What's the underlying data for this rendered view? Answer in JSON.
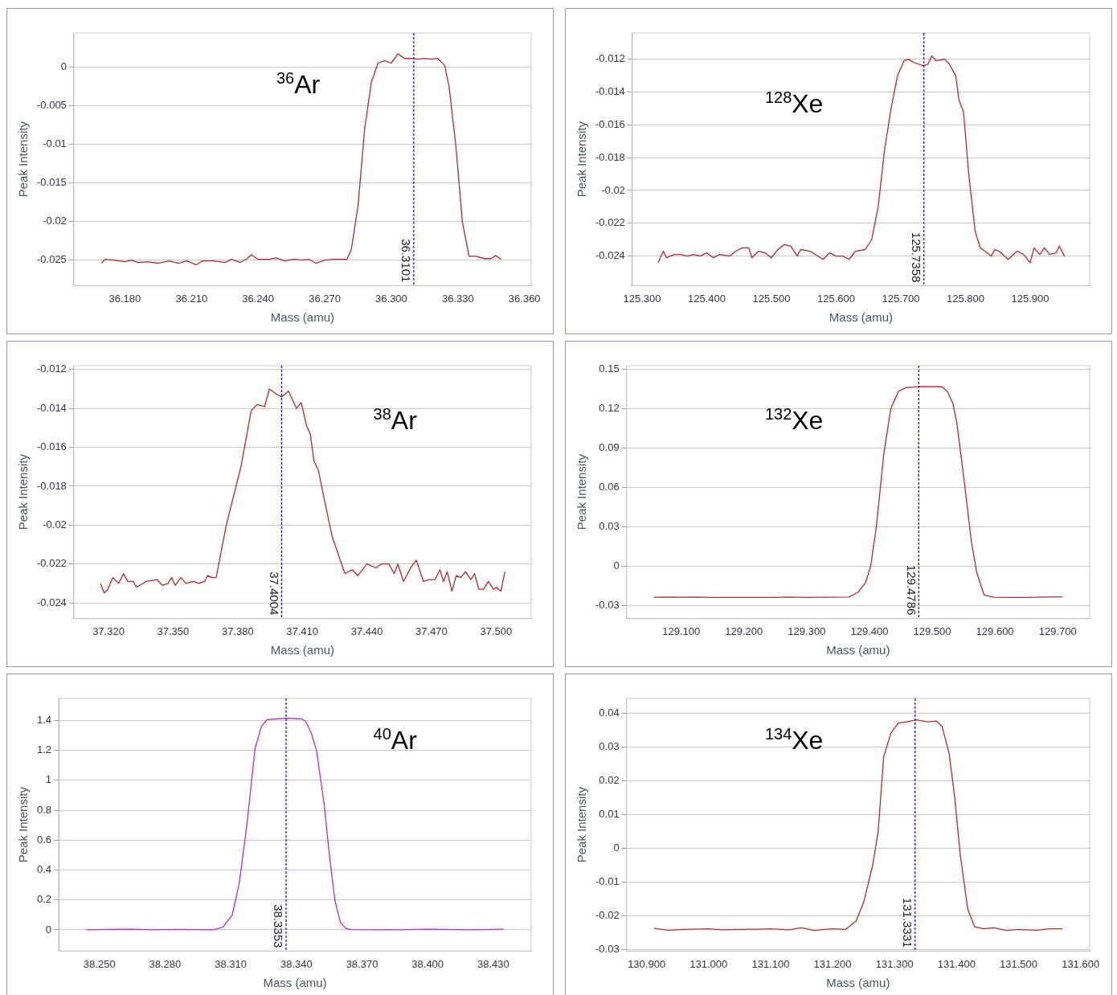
{
  "chart_data": [
    {
      "type": "line",
      "xlabel": "Mass (amu)",
      "ylabel": "Peak Intensity",
      "annotations": [
        "$^{36}$Ar"
      ],
      "grid": "y",
      "color": "#b22a2a",
      "x": [
        36.1695,
        36.171,
        36.175,
        36.18,
        36.183,
        36.186,
        36.19,
        36.195,
        36.2,
        36.204,
        36.208,
        36.212,
        36.215,
        36.22,
        36.225,
        36.228,
        36.232,
        36.235,
        36.237,
        36.24,
        36.245,
        36.248,
        36.252,
        36.256,
        36.26,
        36.263,
        36.266,
        36.27,
        36.274,
        36.28,
        36.282,
        36.285,
        36.288,
        36.291,
        36.294,
        36.297,
        36.3,
        36.303,
        36.306,
        36.309,
        36.312,
        36.315,
        36.318,
        36.321,
        36.324,
        36.326,
        36.329,
        36.332,
        36.335,
        36.338,
        36.342,
        36.345,
        36.347,
        36.3495
      ],
      "values": [
        -0.0254,
        -0.0249,
        -0.025,
        -0.0252,
        -0.025,
        -0.0253,
        -0.0252,
        -0.0254,
        -0.0251,
        -0.0254,
        -0.0251,
        -0.0256,
        -0.0251,
        -0.0251,
        -0.0253,
        -0.0249,
        -0.0253,
        -0.0248,
        -0.0243,
        -0.0249,
        -0.0249,
        -0.0247,
        -0.0251,
        -0.0249,
        -0.025,
        -0.0249,
        -0.0254,
        -0.025,
        -0.0249,
        -0.0249,
        -0.0236,
        -0.018,
        -0.008,
        -0.002,
        0.0005,
        0.0008,
        0.0005,
        0.0017,
        0.0011,
        0.0011,
        0.001,
        0.0011,
        0.001,
        0.0011,
        0.0002,
        -0.0025,
        -0.01,
        -0.02,
        -0.0245,
        -0.0245,
        -0.0248,
        -0.0248,
        -0.0244,
        -0.0249
      ],
      "xlim": [
        36.157,
        36.363
      ],
      "xticks": [
        {
          "value": 36.18,
          "label": "36.180"
        },
        {
          "value": 36.21,
          "label": "36.210"
        },
        {
          "value": 36.24,
          "label": "36.240"
        },
        {
          "value": 36.27,
          "label": "36.270"
        },
        {
          "value": 36.3,
          "label": "36.300"
        },
        {
          "value": 36.33,
          "label": "36.330"
        },
        {
          "value": 36.36,
          "label": "36.360"
        }
      ],
      "ylim": [
        -0.0283,
        0.0044
      ],
      "yticks": [
        0,
        -0.005,
        -0.01,
        -0.015,
        -0.02,
        -0.025
      ],
      "ref_lines": [
        {
          "axis": "x",
          "value": 36.3101,
          "label": "36.3101",
          "color": "#0000ee",
          "line_style": "dashed"
        }
      ]
    },
    {
      "type": "line",
      "xlabel": "Mass (amu)",
      "ylabel": "Peak Intensity",
      "annotations": [
        "$^{128}$Xe"
      ],
      "grid": "y",
      "color": "#b22a2a",
      "x": [
        125.325,
        125.333,
        125.338,
        125.35,
        125.36,
        125.37,
        125.38,
        125.39,
        125.4,
        125.41,
        125.42,
        125.435,
        125.445,
        125.455,
        125.465,
        125.47,
        125.48,
        125.49,
        125.5,
        125.51,
        125.52,
        125.53,
        125.54,
        125.545,
        125.56,
        125.58,
        125.59,
        125.6,
        125.61,
        125.62,
        125.63,
        125.645,
        125.655,
        125.665,
        125.675,
        125.685,
        125.695,
        125.705,
        125.712,
        125.72,
        125.735,
        125.742,
        125.748,
        125.755,
        125.768,
        125.775,
        125.785,
        125.79,
        125.797,
        125.805,
        125.815,
        125.823,
        125.83,
        125.84,
        125.845,
        125.852,
        125.866,
        125.88,
        125.89,
        125.9,
        125.906,
        125.915,
        125.922,
        125.93,
        125.94,
        125.945,
        125.953
      ],
      "values": [
        -0.0244,
        -0.0237,
        -0.0241,
        -0.0239,
        -0.0239,
        -0.024,
        -0.0239,
        -0.024,
        -0.0238,
        -0.0241,
        -0.0239,
        -0.024,
        -0.0237,
        -0.0235,
        -0.0235,
        -0.0241,
        -0.0237,
        -0.0238,
        -0.0241,
        -0.0236,
        -0.0233,
        -0.0234,
        -0.024,
        -0.0236,
        -0.0237,
        -0.0242,
        -0.0238,
        -0.024,
        -0.024,
        -0.0242,
        -0.0237,
        -0.0236,
        -0.023,
        -0.021,
        -0.0175,
        -0.015,
        -0.013,
        -0.0121,
        -0.012,
        -0.0122,
        -0.0124,
        -0.0123,
        -0.0118,
        -0.0121,
        -0.012,
        -0.0123,
        -0.013,
        -0.0145,
        -0.0152,
        -0.019,
        -0.0225,
        -0.0235,
        -0.0237,
        -0.024,
        -0.0236,
        -0.0237,
        -0.0242,
        -0.0237,
        -0.0239,
        -0.0244,
        -0.0235,
        -0.0239,
        -0.0235,
        -0.0239,
        -0.0238,
        -0.0234,
        -0.024
      ],
      "xlim": [
        125.285,
        125.992
      ],
      "xticks": [
        {
          "value": 125.3,
          "label": "125.300"
        },
        {
          "value": 125.4,
          "label": "125.400"
        },
        {
          "value": 125.5,
          "label": "125.500"
        },
        {
          "value": 125.6,
          "label": "125.600"
        },
        {
          "value": 125.7,
          "label": "125.700"
        },
        {
          "value": 125.8,
          "label": "125.800"
        },
        {
          "value": 125.9,
          "label": "125.900"
        }
      ],
      "ylim": [
        -0.0258,
        -0.0104
      ],
      "yticks": [
        -0.012,
        -0.014,
        -0.016,
        -0.018,
        -0.02,
        -0.022,
        -0.024
      ],
      "ref_lines": [
        {
          "axis": "x",
          "value": 125.7358,
          "label": "125.7358",
          "color": "#0000ee",
          "line_style": "dashed"
        }
      ]
    },
    {
      "type": "line",
      "xlabel": "Mass (amu)",
      "ylabel": "Peak Intensity",
      "annotations": [
        "$^{38}$Ar"
      ],
      "grid": "y",
      "color": "#b22a2a",
      "x": [
        37.3163,
        37.318,
        37.3197,
        37.322,
        37.3247,
        37.327,
        37.329,
        37.3315,
        37.333,
        37.3375,
        37.3425,
        37.345,
        37.3476,
        37.3493,
        37.351,
        37.3536,
        37.356,
        37.3595,
        37.362,
        37.3646,
        37.366,
        37.368,
        37.37,
        37.3747,
        37.3815,
        37.3863,
        37.389,
        37.3925,
        37.3947,
        37.3985,
        37.4005,
        37.4036,
        37.4073,
        37.4095,
        37.412,
        37.4137,
        37.4154,
        37.4175,
        37.4197,
        37.4239,
        37.4264,
        37.4298,
        37.4332,
        37.4358,
        37.44,
        37.4442,
        37.4468,
        37.4502,
        37.4527,
        37.4544,
        37.457,
        37.4603,
        37.4629,
        37.4663,
        37.4688,
        37.4717,
        37.4739,
        37.4756,
        37.4773,
        37.4795,
        37.4815,
        37.4836,
        37.4858,
        37.4883,
        37.49,
        37.492,
        37.4942,
        37.4964,
        37.4988,
        37.5002,
        37.5022,
        37.5041
      ],
      "values": [
        -0.023,
        -0.0235,
        -0.0233,
        -0.0227,
        -0.023,
        -0.0225,
        -0.0229,
        -0.0229,
        -0.0232,
        -0.0229,
        -0.0228,
        -0.0231,
        -0.023,
        -0.0227,
        -0.0231,
        -0.0227,
        -0.023,
        -0.0229,
        -0.023,
        -0.0229,
        -0.0226,
        -0.0227,
        -0.0227,
        -0.02,
        -0.017,
        -0.0141,
        -0.0138,
        -0.0139,
        -0.013,
        -0.0133,
        -0.0134,
        -0.0131,
        -0.014,
        -0.0137,
        -0.0149,
        -0.0153,
        -0.0167,
        -0.0172,
        -0.0184,
        -0.0206,
        -0.0214,
        -0.0225,
        -0.0223,
        -0.0226,
        -0.022,
        -0.0222,
        -0.022,
        -0.022,
        -0.0225,
        -0.022,
        -0.0229,
        -0.0222,
        -0.0218,
        -0.0229,
        -0.0228,
        -0.0228,
        -0.0223,
        -0.0229,
        -0.0224,
        -0.0234,
        -0.0226,
        -0.0227,
        -0.0224,
        -0.0228,
        -0.0225,
        -0.0233,
        -0.0233,
        -0.0229,
        -0.0233,
        -0.0232,
        -0.0234,
        -0.0224
      ],
      "xlim": [
        37.3039,
        37.5163
      ],
      "xticks": [
        {
          "value": 37.32,
          "label": "37.320"
        },
        {
          "value": 37.35,
          "label": "37.350"
        },
        {
          "value": 37.38,
          "label": "37.380"
        },
        {
          "value": 37.41,
          "label": "37.410"
        },
        {
          "value": 37.44,
          "label": "37.440"
        },
        {
          "value": 37.47,
          "label": "37.470"
        },
        {
          "value": 37.5,
          "label": "37.500"
        }
      ],
      "ylim": [
        -0.0248,
        -0.0118
      ],
      "yticks": [
        -0.012,
        -0.014,
        -0.016,
        -0.018,
        -0.02,
        -0.022,
        -0.024
      ],
      "ref_lines": [
        {
          "axis": "x",
          "value": 37.4004,
          "label": "37.4004",
          "color": "#0000ee",
          "line_style": "dashed"
        }
      ]
    },
    {
      "type": "line",
      "xlabel": "Mass (amu)",
      "ylabel": "Peak Intensity",
      "annotations": [
        "$^{132}$Xe"
      ],
      "grid": "y",
      "color": "#b22a2a",
      "x": [
        129.0564,
        129.08,
        129.1,
        129.12,
        129.15,
        129.2,
        129.25,
        129.27,
        129.3,
        129.33,
        129.367,
        129.382,
        129.394,
        129.402,
        129.411,
        129.423,
        129.434,
        129.446,
        129.4576,
        129.481,
        129.5157,
        129.5244,
        129.533,
        129.539,
        129.55,
        129.5622,
        129.571,
        129.5826,
        129.597,
        129.62,
        129.65,
        129.68,
        129.7076
      ],
      "values": [
        -0.0239,
        -0.0237,
        -0.0239,
        -0.0237,
        -0.024,
        -0.024,
        -0.024,
        -0.0237,
        -0.024,
        -0.0239,
        -0.0237,
        -0.02,
        -0.0125,
        0,
        0.03,
        0.086,
        0.12,
        0.133,
        0.136,
        0.1369,
        0.1367,
        0.133,
        0.124,
        0.11,
        0.069,
        0.0194,
        -0.005,
        -0.022,
        -0.0239,
        -0.024,
        -0.024,
        -0.0237,
        -0.0236
      ],
      "xlim": [
        129.0128,
        129.751
      ],
      "xticks": [
        {
          "value": 129.1,
          "label": "129.100"
        },
        {
          "value": 129.2,
          "label": "129.200"
        },
        {
          "value": 129.3,
          "label": "129.300"
        },
        {
          "value": 129.4,
          "label": "129.400"
        },
        {
          "value": 129.5,
          "label": "129.500"
        },
        {
          "value": 129.6,
          "label": "129.600"
        },
        {
          "value": 129.7,
          "label": "129.700"
        }
      ],
      "ylim": [
        -0.04,
        0.1528
      ],
      "yticks": [
        0.15,
        0.12,
        0.09,
        0.06,
        0.03,
        0,
        -0.03
      ],
      "ref_lines": [
        {
          "axis": "x",
          "value": 129.4786,
          "label": "129.4786",
          "color": "#0000ee",
          "line_style": "dashed"
        }
      ]
    },
    {
      "type": "line",
      "xlabel": "Mass (amu)",
      "ylabel": "Peak Intensity",
      "annotations": [
        "$^{40}$Ar"
      ],
      "grid": "y",
      "color": "#b030c0",
      "x": [
        38.2441,
        38.255,
        38.265,
        38.275,
        38.285,
        38.295,
        38.3023,
        38.3065,
        38.3107,
        38.314,
        38.3174,
        38.3211,
        38.324,
        38.3266,
        38.3308,
        38.3358,
        38.3425,
        38.3442,
        38.3467,
        38.3492,
        38.3526,
        38.3551,
        38.3576,
        38.3601,
        38.3626,
        38.365,
        38.38,
        38.4,
        38.42,
        38.4347
      ],
      "values": [
        0,
        0.003,
        0.004,
        0,
        0.003,
        0.002,
        0,
        0.02,
        0.1,
        0.32,
        0.706,
        1.21,
        1.36,
        1.405,
        1.41,
        1.415,
        1.41,
        1.395,
        1.32,
        1.2,
        0.85,
        0.5,
        0.2,
        0.05,
        0.01,
        0.002,
        0,
        0.004,
        0,
        0.004
      ],
      "xlim": [
        38.2314,
        38.4473
      ],
      "xticks": [
        {
          "value": 38.25,
          "label": "38.250"
        },
        {
          "value": 38.28,
          "label": "38.280"
        },
        {
          "value": 38.31,
          "label": "38.310"
        },
        {
          "value": 38.34,
          "label": "38.340"
        },
        {
          "value": 38.37,
          "label": "38.370"
        },
        {
          "value": 38.4,
          "label": "38.400"
        },
        {
          "value": 38.43,
          "label": "38.430"
        }
      ],
      "ylim": [
        -0.142,
        1.547
      ],
      "yticks": [
        1.4,
        1.2,
        1,
        0.8,
        0.6,
        0.4,
        0.2,
        0
      ],
      "ref_lines": [
        {
          "axis": "x",
          "value": 38.3353,
          "label": "38.3353",
          "color": "#0000ee",
          "line_style": "dashed"
        }
      ]
    },
    {
      "type": "line",
      "xlabel": "Mass (amu)",
      "ylabel": "Peak Intensity",
      "annotations": [
        "$^{134}$Xe"
      ],
      "grid": "y",
      "color": "#b22a2a",
      "x": [
        130.912,
        130.935,
        130.96,
        131.0,
        131.02,
        131.05,
        131.08,
        131.1,
        131.13,
        131.15,
        131.17,
        131.2,
        131.2206,
        131.238,
        131.25,
        131.2647,
        131.2735,
        131.2824,
        131.294,
        131.306,
        131.3176,
        131.335,
        131.353,
        131.3676,
        131.3765,
        131.388,
        131.397,
        131.406,
        131.418,
        131.429,
        131.444,
        131.46,
        131.48,
        131.5,
        131.53,
        131.55,
        131.5706
      ],
      "values": [
        -0.0237,
        -0.0242,
        -0.024,
        -0.0238,
        -0.0241,
        -0.024,
        -0.0239,
        -0.0238,
        -0.0241,
        -0.0235,
        -0.0243,
        -0.0238,
        -0.024,
        -0.0215,
        -0.016,
        -0.005,
        0.005,
        0.027,
        0.034,
        0.037,
        0.0373,
        0.038,
        0.0374,
        0.0376,
        0.036,
        0.028,
        0.015,
        -0.002,
        -0.018,
        -0.0232,
        -0.0238,
        -0.0235,
        -0.0243,
        -0.024,
        -0.0242,
        -0.0238,
        -0.0238
      ],
      "xlim": [
        130.8676,
        131.6147
      ],
      "xticks": [
        {
          "value": 130.9,
          "label": "130.900"
        },
        {
          "value": 131.0,
          "label": "131.000"
        },
        {
          "value": 131.1,
          "label": "131.100"
        },
        {
          "value": 131.2,
          "label": "131.200"
        },
        {
          "value": 131.3,
          "label": "131.300"
        },
        {
          "value": 131.4,
          "label": "131.400"
        },
        {
          "value": 131.5,
          "label": "131.500"
        },
        {
          "value": 131.6,
          "label": "131.600"
        }
      ],
      "ylim": [
        -0.0304,
        0.0443
      ],
      "yticks": [
        0.04,
        0.03,
        0.02,
        0.01,
        0,
        -0.01,
        -0.02,
        -0.03
      ],
      "ref_lines": [
        {
          "axis": "x",
          "value": 131.3331,
          "label": "131.3331",
          "color": "#0000ee",
          "line_style": "dashed"
        }
      ]
    }
  ]
}
